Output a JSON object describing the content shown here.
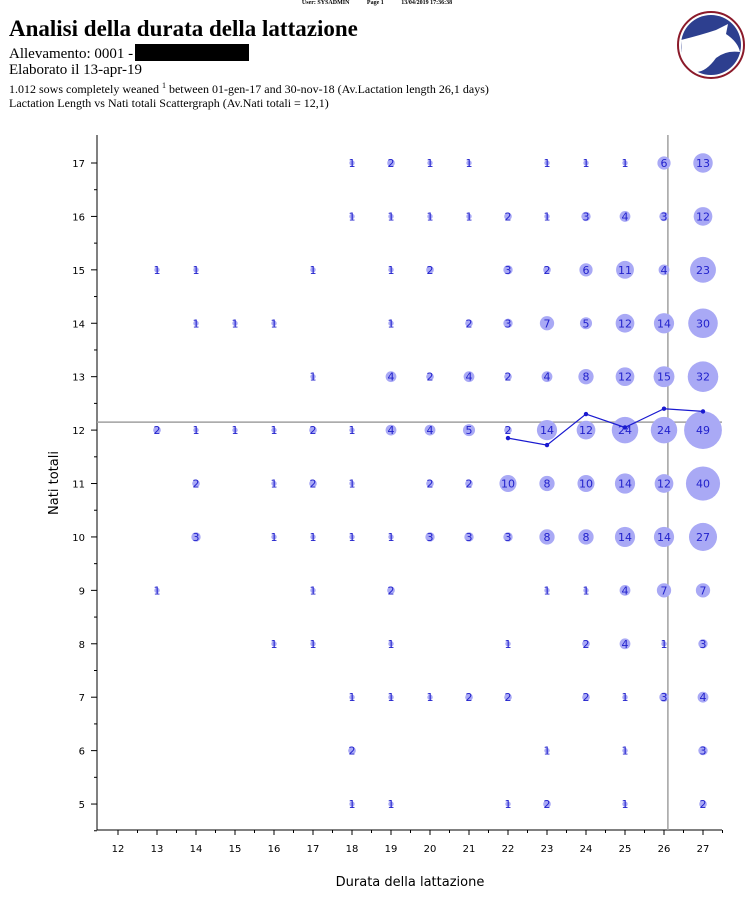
{
  "header": {
    "user": "User: SYSADMIN",
    "page": "Page 1",
    "datetime": "13/04/2019 17:36:38"
  },
  "report": {
    "title": "Analisi della durata della lattazione",
    "farm": "Allevamento: 0001 -",
    "processed": "Elaborato il 13-apr-19",
    "summary_pre": "1.012 sows completely weaned ",
    "summary_sup": "1",
    "summary_post": " between 01-gen-17 and 30-nov-18 (Av.Lactation length 26,1 days)",
    "subtitle": "Lactation Length vs Nati totali Scattergraph (Av.Nati totali = 12,1)"
  },
  "colors": {
    "bubble": "#a9a9f5",
    "label": "#2222cc",
    "line": "#1a1ad0",
    "refline": "#a0a0a0",
    "logo_ring": "#8b1a2a",
    "logo_fill": "#2d3f8f"
  },
  "logo": {
    "icon": "pig-logo"
  },
  "chart_data": {
    "type": "scatter",
    "xlabel": "Durata della lattazione",
    "ylabel": "Nati totali",
    "xlim": [
      11,
      27.5
    ],
    "ylim": [
      4.5,
      17.5
    ],
    "xticks": [
      12,
      13,
      14,
      15,
      16,
      17,
      18,
      19,
      20,
      21,
      22,
      23,
      24,
      25,
      26,
      27
    ],
    "yticks": [
      5,
      6,
      7,
      8,
      9,
      10,
      11,
      12,
      13,
      14,
      15,
      16,
      17
    ],
    "grid": false,
    "ref_x": 26.1,
    "ref_y": 12.15,
    "points": [
      [
        18,
        17,
        1
      ],
      [
        19,
        17,
        2
      ],
      [
        20,
        17,
        1
      ],
      [
        21,
        17,
        1
      ],
      [
        23,
        17,
        1
      ],
      [
        24,
        17,
        1
      ],
      [
        25,
        17,
        1
      ],
      [
        26,
        17,
        6
      ],
      [
        27,
        17,
        13
      ],
      [
        18,
        16,
        1
      ],
      [
        19,
        16,
        1
      ],
      [
        20,
        16,
        1
      ],
      [
        21,
        16,
        1
      ],
      [
        22,
        16,
        2
      ],
      [
        23,
        16,
        1
      ],
      [
        24,
        16,
        3
      ],
      [
        25,
        16,
        4
      ],
      [
        26,
        16,
        3
      ],
      [
        27,
        16,
        12
      ],
      [
        13,
        15,
        1
      ],
      [
        14,
        15,
        1
      ],
      [
        17,
        15,
        1
      ],
      [
        19,
        15,
        1
      ],
      [
        20,
        15,
        2
      ],
      [
        22,
        15,
        3
      ],
      [
        23,
        15,
        2
      ],
      [
        24,
        15,
        6
      ],
      [
        25,
        15,
        11
      ],
      [
        26,
        15,
        4
      ],
      [
        27,
        15,
        23
      ],
      [
        14,
        14,
        1
      ],
      [
        15,
        14,
        1
      ],
      [
        16,
        14,
        1
      ],
      [
        19,
        14,
        1
      ],
      [
        21,
        14,
        2
      ],
      [
        22,
        14,
        3
      ],
      [
        23,
        14,
        7
      ],
      [
        24,
        14,
        5
      ],
      [
        25,
        14,
        12
      ],
      [
        26,
        14,
        14
      ],
      [
        27,
        14,
        30
      ],
      [
        17,
        13,
        1
      ],
      [
        19,
        13,
        4
      ],
      [
        20,
        13,
        2
      ],
      [
        21,
        13,
        4
      ],
      [
        22,
        13,
        2
      ],
      [
        23,
        13,
        4
      ],
      [
        24,
        13,
        8
      ],
      [
        25,
        13,
        12
      ],
      [
        26,
        13,
        15
      ],
      [
        27,
        13,
        32
      ],
      [
        13,
        12,
        2
      ],
      [
        14,
        12,
        1
      ],
      [
        15,
        12,
        1
      ],
      [
        16,
        12,
        1
      ],
      [
        17,
        12,
        2
      ],
      [
        18,
        12,
        1
      ],
      [
        19,
        12,
        4
      ],
      [
        20,
        12,
        4
      ],
      [
        21,
        12,
        5
      ],
      [
        22,
        12,
        2
      ],
      [
        23,
        12,
        14
      ],
      [
        24,
        12,
        12
      ],
      [
        25,
        12,
        24
      ],
      [
        26,
        12,
        24
      ],
      [
        27,
        12,
        49
      ],
      [
        14,
        11,
        2
      ],
      [
        16,
        11,
        1
      ],
      [
        17,
        11,
        2
      ],
      [
        18,
        11,
        1
      ],
      [
        20,
        11,
        2
      ],
      [
        21,
        11,
        2
      ],
      [
        22,
        11,
        10
      ],
      [
        23,
        11,
        8
      ],
      [
        24,
        11,
        10
      ],
      [
        25,
        11,
        14
      ],
      [
        26,
        11,
        12
      ],
      [
        27,
        11,
        40
      ],
      [
        14,
        10,
        3
      ],
      [
        16,
        10,
        1
      ],
      [
        17,
        10,
        1
      ],
      [
        18,
        10,
        1
      ],
      [
        19,
        10,
        1
      ],
      [
        20,
        10,
        3
      ],
      [
        21,
        10,
        3
      ],
      [
        22,
        10,
        3
      ],
      [
        23,
        10,
        8
      ],
      [
        24,
        10,
        8
      ],
      [
        25,
        10,
        14
      ],
      [
        26,
        10,
        14
      ],
      [
        27,
        10,
        27
      ],
      [
        13,
        9,
        1
      ],
      [
        17,
        9,
        1
      ],
      [
        19,
        9,
        2
      ],
      [
        23,
        9,
        1
      ],
      [
        24,
        9,
        1
      ],
      [
        25,
        9,
        4
      ],
      [
        26,
        9,
        7
      ],
      [
        27,
        9,
        7
      ],
      [
        16,
        8,
        1
      ],
      [
        17,
        8,
        1
      ],
      [
        19,
        8,
        1
      ],
      [
        22,
        8,
        1
      ],
      [
        24,
        8,
        2
      ],
      [
        25,
        8,
        4
      ],
      [
        26,
        8,
        1
      ],
      [
        27,
        8,
        3
      ],
      [
        18,
        7,
        1
      ],
      [
        19,
        7,
        1
      ],
      [
        20,
        7,
        1
      ],
      [
        21,
        7,
        2
      ],
      [
        22,
        7,
        2
      ],
      [
        24,
        7,
        2
      ],
      [
        25,
        7,
        1
      ],
      [
        26,
        7,
        3
      ],
      [
        27,
        7,
        4
      ],
      [
        18,
        6,
        2
      ],
      [
        23,
        6,
        1
      ],
      [
        25,
        6,
        1
      ],
      [
        27,
        6,
        3
      ],
      [
        18,
        5,
        1
      ],
      [
        19,
        5,
        1
      ],
      [
        22,
        5,
        1
      ],
      [
        23,
        5,
        2
      ],
      [
        25,
        5,
        1
      ],
      [
        27,
        5,
        2
      ]
    ],
    "average_line": {
      "x": [
        22,
        23,
        24,
        25,
        26,
        27
      ],
      "y": [
        11.85,
        11.72,
        12.3,
        12.05,
        12.4,
        12.35
      ]
    }
  }
}
